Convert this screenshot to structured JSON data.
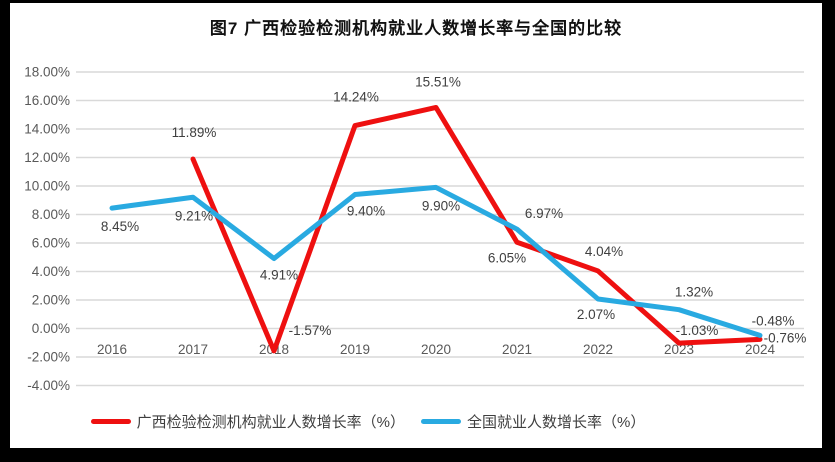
{
  "title": "图7 广西检验检测机构就业人数增长率与全国的比较",
  "chart_data": {
    "type": "line",
    "title": "图7 广西检验检测机构就业人数增长率与全国的比较",
    "categories": [
      "2016",
      "2017",
      "2018",
      "2019",
      "2020",
      "2021",
      "2022",
      "2023",
      "2024"
    ],
    "series": [
      {
        "name": "广西检验检测机构就业人数增长率（%）",
        "color": "#ee1010",
        "values": [
          null,
          11.89,
          -1.57,
          14.24,
          15.51,
          6.05,
          4.04,
          -1.03,
          -0.76
        ]
      },
      {
        "name": "全国就业人数增长率（%）",
        "color": "#29aae1",
        "values": [
          8.45,
          9.21,
          4.91,
          9.4,
          9.9,
          6.97,
          2.07,
          1.32,
          -0.48
        ]
      }
    ],
    "ylim": [
      -4,
      18
    ],
    "ytick_step": 2,
    "ytick_format": "0.00%",
    "grid": true,
    "data_labels": true,
    "legend_position": "bottom",
    "colors": {
      "frame_border": "#000000",
      "plot_background": "#ffffff",
      "gridline": "#d9d9d9",
      "axis_label": "#595959",
      "data_label": "#3f3f3f",
      "legend_text": "#3f3f3f",
      "title_text": "#111111"
    }
  }
}
